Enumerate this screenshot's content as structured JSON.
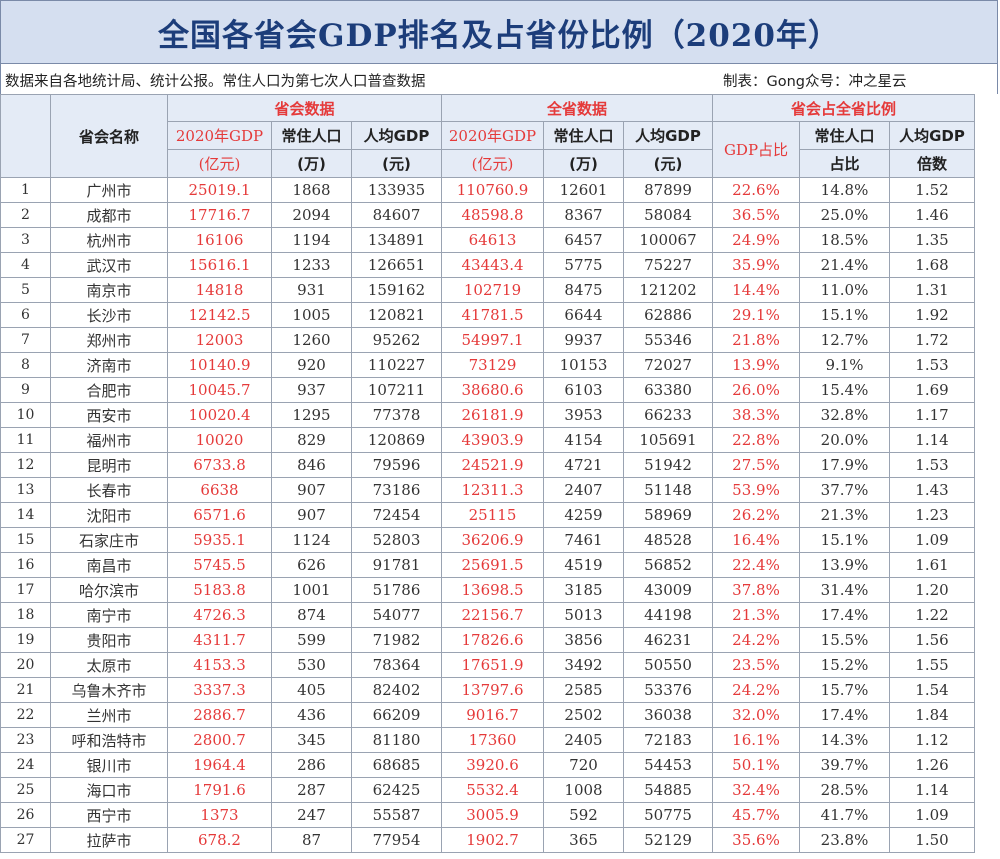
{
  "title": "全国各省会GDP排名及占省份比例（2020年）",
  "source_note": "数据来自各地统计局、统计公报。常住人口为第七次人口普查数据",
  "credit": "制表：Gong众号：冲之星云",
  "header": {
    "city_col": "省会名称",
    "group_city": "省会数据",
    "group_province": "全省数据",
    "group_ratio": "省会占全省比例",
    "gdp_l1": "2020年GDP",
    "gdp_l2": "(亿元)",
    "pop_l1": "常住人口",
    "pop_l2": "(万)",
    "pcgdp_l1": "人均GDP",
    "pcgdp_l2": "(元)",
    "gdp_share": "GDP占比",
    "pop_share_l1": "常住人口",
    "pop_share_l2": "占比",
    "pc_ratio_l1": "人均GDP",
    "pc_ratio_l2": "倍数"
  },
  "rows": [
    [
      "1",
      "广州市",
      "25019.1",
      "1868",
      "133935",
      "110760.9",
      "12601",
      "87899",
      "22.6%",
      "14.8%",
      "1.52"
    ],
    [
      "2",
      "成都市",
      "17716.7",
      "2094",
      "84607",
      "48598.8",
      "8367",
      "58084",
      "36.5%",
      "25.0%",
      "1.46"
    ],
    [
      "3",
      "杭州市",
      "16106",
      "1194",
      "134891",
      "64613",
      "6457",
      "100067",
      "24.9%",
      "18.5%",
      "1.35"
    ],
    [
      "4",
      "武汉市",
      "15616.1",
      "1233",
      "126651",
      "43443.4",
      "5775",
      "75227",
      "35.9%",
      "21.4%",
      "1.68"
    ],
    [
      "5",
      "南京市",
      "14818",
      "931",
      "159162",
      "102719",
      "8475",
      "121202",
      "14.4%",
      "11.0%",
      "1.31"
    ],
    [
      "6",
      "长沙市",
      "12142.5",
      "1005",
      "120821",
      "41781.5",
      "6644",
      "62886",
      "29.1%",
      "15.1%",
      "1.92"
    ],
    [
      "7",
      "郑州市",
      "12003",
      "1260",
      "95262",
      "54997.1",
      "9937",
      "55346",
      "21.8%",
      "12.7%",
      "1.72"
    ],
    [
      "8",
      "济南市",
      "10140.9",
      "920",
      "110227",
      "73129",
      "10153",
      "72027",
      "13.9%",
      "9.1%",
      "1.53"
    ],
    [
      "9",
      "合肥市",
      "10045.7",
      "937",
      "107211",
      "38680.6",
      "6103",
      "63380",
      "26.0%",
      "15.4%",
      "1.69"
    ],
    [
      "10",
      "西安市",
      "10020.4",
      "1295",
      "77378",
      "26181.9",
      "3953",
      "66233",
      "38.3%",
      "32.8%",
      "1.17"
    ],
    [
      "11",
      "福州市",
      "10020",
      "829",
      "120869",
      "43903.9",
      "4154",
      "105691",
      "22.8%",
      "20.0%",
      "1.14"
    ],
    [
      "12",
      "昆明市",
      "6733.8",
      "846",
      "79596",
      "24521.9",
      "4721",
      "51942",
      "27.5%",
      "17.9%",
      "1.53"
    ],
    [
      "13",
      "长春市",
      "6638",
      "907",
      "73186",
      "12311.3",
      "2407",
      "51148",
      "53.9%",
      "37.7%",
      "1.43"
    ],
    [
      "14",
      "沈阳市",
      "6571.6",
      "907",
      "72454",
      "25115",
      "4259",
      "58969",
      "26.2%",
      "21.3%",
      "1.23"
    ],
    [
      "15",
      "石家庄市",
      "5935.1",
      "1124",
      "52803",
      "36206.9",
      "7461",
      "48528",
      "16.4%",
      "15.1%",
      "1.09"
    ],
    [
      "16",
      "南昌市",
      "5745.5",
      "626",
      "91781",
      "25691.5",
      "4519",
      "56852",
      "22.4%",
      "13.9%",
      "1.61"
    ],
    [
      "17",
      "哈尔滨市",
      "5183.8",
      "1001",
      "51786",
      "13698.5",
      "3185",
      "43009",
      "37.8%",
      "31.4%",
      "1.20"
    ],
    [
      "18",
      "南宁市",
      "4726.3",
      "874",
      "54077",
      "22156.7",
      "5013",
      "44198",
      "21.3%",
      "17.4%",
      "1.22"
    ],
    [
      "19",
      "贵阳市",
      "4311.7",
      "599",
      "71982",
      "17826.6",
      "3856",
      "46231",
      "24.2%",
      "15.5%",
      "1.56"
    ],
    [
      "20",
      "太原市",
      "4153.3",
      "530",
      "78364",
      "17651.9",
      "3492",
      "50550",
      "23.5%",
      "15.2%",
      "1.55"
    ],
    [
      "21",
      "乌鲁木齐市",
      "3337.3",
      "405",
      "82402",
      "13797.6",
      "2585",
      "53376",
      "24.2%",
      "15.7%",
      "1.54"
    ],
    [
      "22",
      "兰州市",
      "2886.7",
      "436",
      "66209",
      "9016.7",
      "2502",
      "36038",
      "32.0%",
      "17.4%",
      "1.84"
    ],
    [
      "23",
      "呼和浩特市",
      "2800.7",
      "345",
      "81180",
      "17360",
      "2405",
      "72183",
      "16.1%",
      "14.3%",
      "1.12"
    ],
    [
      "24",
      "银川市",
      "1964.4",
      "286",
      "68685",
      "3920.6",
      "720",
      "54453",
      "50.1%",
      "39.7%",
      "1.26"
    ],
    [
      "25",
      "海口市",
      "1791.6",
      "287",
      "62425",
      "5532.4",
      "1008",
      "54885",
      "32.4%",
      "28.5%",
      "1.14"
    ],
    [
      "26",
      "西宁市",
      "1373",
      "247",
      "55587",
      "3005.9",
      "592",
      "50775",
      "45.7%",
      "41.7%",
      "1.09"
    ],
    [
      "27",
      "拉萨市",
      "678.2",
      "87",
      "77954",
      "1902.7",
      "365",
      "52129",
      "35.6%",
      "23.8%",
      "1.50"
    ]
  ]
}
